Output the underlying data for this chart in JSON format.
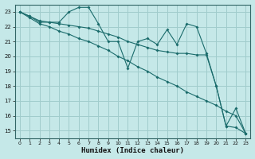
{
  "xlabel": "Humidex (Indice chaleur)",
  "bg_color": "#c5e8e8",
  "grid_color": "#a0cccc",
  "line_color": "#1a6b6b",
  "xlim": [
    -0.5,
    23.5
  ],
  "ylim": [
    14.5,
    23.5
  ],
  "xticks": [
    0,
    1,
    2,
    3,
    4,
    5,
    6,
    7,
    8,
    9,
    10,
    11,
    12,
    13,
    14,
    15,
    16,
    17,
    18,
    19,
    20,
    21,
    22,
    23
  ],
  "yticks": [
    15,
    16,
    17,
    18,
    19,
    20,
    21,
    22,
    23
  ],
  "line1_x": [
    0,
    1,
    2,
    3,
    4,
    5,
    6,
    7,
    8,
    9,
    10,
    11,
    12,
    13,
    14,
    15,
    16,
    17,
    18,
    19,
    20,
    21,
    22,
    23
  ],
  "line1_y": [
    23.0,
    22.7,
    22.3,
    22.3,
    22.3,
    23.0,
    23.3,
    23.3,
    22.2,
    21.0,
    21.0,
    19.2,
    21.0,
    21.2,
    20.8,
    21.8,
    20.8,
    22.2,
    22.0,
    20.2,
    18.0,
    15.3,
    16.5,
    14.8
  ],
  "line2_x": [
    0,
    1,
    2,
    3,
    4,
    5,
    6,
    7,
    8,
    9,
    10,
    11,
    12,
    13,
    14,
    15,
    16,
    17,
    18,
    19,
    20,
    21,
    22,
    23
  ],
  "line2_y": [
    23.0,
    22.7,
    22.4,
    22.3,
    22.2,
    22.1,
    22.0,
    21.9,
    21.7,
    21.5,
    21.3,
    21.0,
    20.8,
    20.6,
    20.4,
    20.3,
    20.2,
    20.2,
    20.1,
    20.1,
    18.0,
    15.3,
    15.2,
    14.8
  ],
  "line3_x": [
    0,
    1,
    2,
    3,
    4,
    5,
    6,
    7,
    8,
    9,
    10,
    11,
    12,
    13,
    14,
    15,
    16,
    17,
    18,
    19,
    20,
    21,
    22,
    23
  ],
  "line3_y": [
    23.0,
    22.6,
    22.2,
    22.0,
    21.7,
    21.5,
    21.2,
    21.0,
    20.7,
    20.4,
    20.0,
    19.7,
    19.3,
    19.0,
    18.6,
    18.3,
    18.0,
    17.6,
    17.3,
    17.0,
    16.7,
    16.3,
    16.0,
    14.8
  ]
}
